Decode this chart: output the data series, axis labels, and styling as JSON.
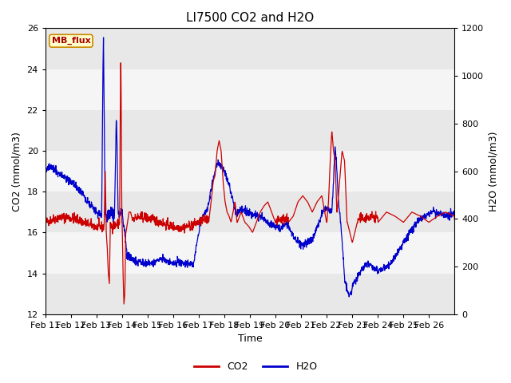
{
  "title": "LI7500 CO2 and H2O",
  "xlabel": "Time",
  "ylabel_left": "CO2 (mmol/m3)",
  "ylabel_right": "H2O (mmol/m3)",
  "ylim_left": [
    12,
    26
  ],
  "ylim_right": [
    0,
    1200
  ],
  "yticks_left": [
    12,
    14,
    16,
    18,
    20,
    22,
    24,
    26
  ],
  "yticks_right": [
    0,
    200,
    400,
    600,
    800,
    1000,
    1200
  ],
  "xticklabels": [
    "Feb 11",
    "Feb 12",
    "Feb 13",
    "Feb 14",
    "Feb 15",
    "Feb 16",
    "Feb 17",
    "Feb 18",
    "Feb 19",
    "Feb 20",
    "Feb 21",
    "Feb 22",
    "Feb 23",
    "Feb 24",
    "Feb 25",
    "Feb 26"
  ],
  "co2_color": "#cc0000",
  "h2o_color": "#0000cc",
  "fig_bg": "#ffffff",
  "plot_bg": "#ffffff",
  "band_color_dark": "#e8e8e8",
  "band_color_light": "#f5f5f5",
  "legend_co2": "CO2",
  "legend_h2o": "H2O",
  "annotation_text": "MB_flux",
  "annotation_bg": "#ffffcc",
  "annotation_border": "#cc8800",
  "title_fontsize": 11,
  "axis_fontsize": 9,
  "tick_fontsize": 8,
  "linewidth": 0.9,
  "n_days": 16,
  "seed": 42
}
